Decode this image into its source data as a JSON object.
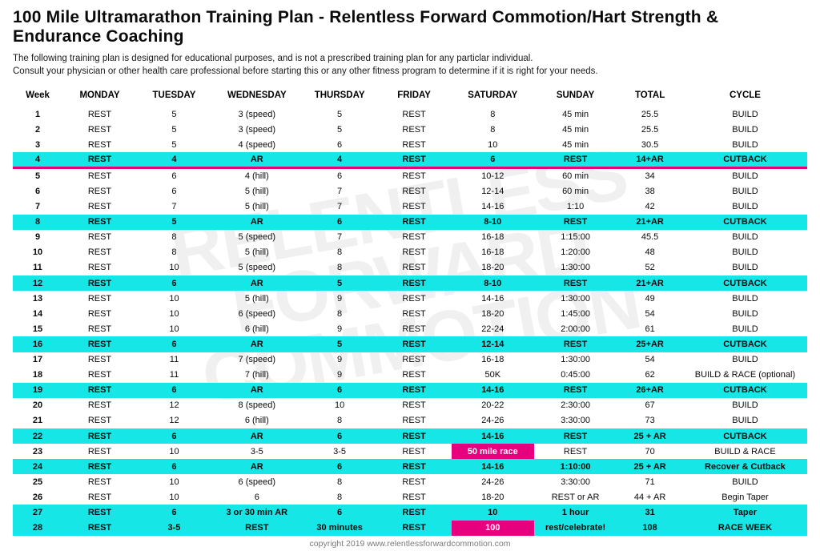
{
  "title": "100 Mile Ultramarathon Training Plan - Relentless Forward Commotion/Hart Strength & Endurance Coaching",
  "subtitle_line1": "The following training plan is designed for educational purposes, and is not a prescribed training plan for any particlar individual.",
  "subtitle_line2": "Consult your physician or other health care professional before starting this or any other fitness program to determine if it is right for your needs.",
  "footer": "copyright 2019 www.relentlessforwardcommotion.com",
  "colors": {
    "cutback_bg": "#17e6e6",
    "race_bg": "#e6007e",
    "pink_line": "#e6007e",
    "text": "#0a0a0a",
    "footer_text": "#7a7a7a",
    "background": "#ffffff"
  },
  "columns": [
    "Week",
    "MONDAY",
    "TUESDAY",
    "WEDNESDAY",
    "THURSDAY",
    "FRIDAY",
    "SATURDAY",
    "SUNDAY",
    "TOTAL",
    "CYCLE"
  ],
  "rows": [
    {
      "cells": [
        "1",
        "REST",
        "5",
        "3 (speed)",
        "5",
        "REST",
        "8",
        "45 min",
        "25.5",
        "BUILD"
      ],
      "style": "",
      "pinkUnder": false,
      "race": []
    },
    {
      "cells": [
        "2",
        "REST",
        "5",
        "3 (speed)",
        "5",
        "REST",
        "8",
        "45 min",
        "25.5",
        "BUILD"
      ],
      "style": "",
      "pinkUnder": false,
      "race": []
    },
    {
      "cells": [
        "3",
        "REST",
        "5",
        "4 (speed)",
        "6",
        "REST",
        "10",
        "45 min",
        "30.5",
        "BUILD"
      ],
      "style": "",
      "pinkUnder": false,
      "race": []
    },
    {
      "cells": [
        "4",
        "REST",
        "4",
        "AR",
        "4",
        "REST",
        "6",
        "REST",
        "14+AR",
        "CUTBACK"
      ],
      "style": "cutback",
      "pinkUnder": true,
      "race": []
    },
    {
      "cells": [
        "5",
        "REST",
        "6",
        "4 (hill)",
        "6",
        "REST",
        "10-12",
        "60 min",
        "34",
        "BUILD"
      ],
      "style": "",
      "pinkUnder": false,
      "race": []
    },
    {
      "cells": [
        "6",
        "REST",
        "6",
        "5 (hill)",
        "7",
        "REST",
        "12-14",
        "60 min",
        "38",
        "BUILD"
      ],
      "style": "",
      "pinkUnder": false,
      "race": []
    },
    {
      "cells": [
        "7",
        "REST",
        "7",
        "5 (hill)",
        "7",
        "REST",
        "14-16",
        "1:10",
        "42",
        "BUILD"
      ],
      "style": "",
      "pinkUnder": false,
      "race": []
    },
    {
      "cells": [
        "8",
        "REST",
        "5",
        "AR",
        "6",
        "REST",
        "8-10",
        "REST",
        "21+AR",
        "CUTBACK"
      ],
      "style": "cutback",
      "pinkUnder": false,
      "race": []
    },
    {
      "cells": [
        "9",
        "REST",
        "8",
        "5 (speed)",
        "7",
        "REST",
        "16-18",
        "1:15:00",
        "45.5",
        "BUILD"
      ],
      "style": "",
      "pinkUnder": false,
      "race": []
    },
    {
      "cells": [
        "10",
        "REST",
        "8",
        "5 (hill)",
        "8",
        "REST",
        "16-18",
        "1:20:00",
        "48",
        "BUILD"
      ],
      "style": "",
      "pinkUnder": false,
      "race": []
    },
    {
      "cells": [
        "11",
        "REST",
        "10",
        "5 (speed)",
        "8",
        "REST",
        "18-20",
        "1:30:00",
        "52",
        "BUILD"
      ],
      "style": "",
      "pinkUnder": false,
      "race": []
    },
    {
      "cells": [
        "12",
        "REST",
        "6",
        "AR",
        "5",
        "REST",
        "8-10",
        "REST",
        "21+AR",
        "CUTBACK"
      ],
      "style": "cutback",
      "pinkUnder": false,
      "race": []
    },
    {
      "cells": [
        "13",
        "REST",
        "10",
        "5 (hill)",
        "9",
        "REST",
        "14-16",
        "1:30:00",
        "49",
        "BUILD"
      ],
      "style": "",
      "pinkUnder": false,
      "race": []
    },
    {
      "cells": [
        "14",
        "REST",
        "10",
        "6 (speed)",
        "8",
        "REST",
        "18-20",
        "1:45:00",
        "54",
        "BUILD"
      ],
      "style": "",
      "pinkUnder": false,
      "race": []
    },
    {
      "cells": [
        "15",
        "REST",
        "10",
        "6 (hill)",
        "9",
        "REST",
        "22-24",
        "2:00:00",
        "61",
        "BUILD"
      ],
      "style": "",
      "pinkUnder": false,
      "race": []
    },
    {
      "cells": [
        "16",
        "REST",
        "6",
        "AR",
        "5",
        "REST",
        "12-14",
        "REST",
        "25+AR",
        "CUTBACK"
      ],
      "style": "cutback",
      "pinkUnder": false,
      "race": []
    },
    {
      "cells": [
        "17",
        "REST",
        "11",
        "7 (speed)",
        "9",
        "REST",
        "16-18",
        "1:30:00",
        "54",
        "BUILD"
      ],
      "style": "",
      "pinkUnder": false,
      "race": []
    },
    {
      "cells": [
        "18",
        "REST",
        "11",
        "7 (hill)",
        "9",
        "REST",
        "50K",
        "0:45:00",
        "62",
        "BUILD & RACE (optional)"
      ],
      "style": "",
      "pinkUnder": false,
      "race": []
    },
    {
      "cells": [
        "19",
        "REST",
        "6",
        "AR",
        "6",
        "REST",
        "14-16",
        "REST",
        "26+AR",
        "CUTBACK"
      ],
      "style": "cutback",
      "pinkUnder": false,
      "race": []
    },
    {
      "cells": [
        "20",
        "REST",
        "12",
        "8 (speed)",
        "10",
        "REST",
        "20-22",
        "2:30:00",
        "67",
        "BUILD"
      ],
      "style": "",
      "pinkUnder": false,
      "race": []
    },
    {
      "cells": [
        "21",
        "REST",
        "12",
        "6 (hill)",
        "8",
        "REST",
        "24-26",
        "3:30:00",
        "73",
        "BUILD"
      ],
      "style": "",
      "pinkUnder": false,
      "race": []
    },
    {
      "cells": [
        "22",
        "REST",
        "6",
        "AR",
        "6",
        "REST",
        "14-16",
        "REST",
        "25 + AR",
        "CUTBACK"
      ],
      "style": "cutback",
      "pinkUnder": false,
      "race": []
    },
    {
      "cells": [
        "23",
        "REST",
        "10",
        "3-5",
        "3-5",
        "REST",
        "50 mile race",
        "REST",
        "70",
        "BUILD & RACE"
      ],
      "style": "",
      "pinkUnder": false,
      "race": [
        6
      ]
    },
    {
      "cells": [
        "24",
        "REST",
        "6",
        "AR",
        "6",
        "REST",
        "14-16",
        "1:10:00",
        "25 + AR",
        "Recover & Cutback"
      ],
      "style": "cutback",
      "pinkUnder": false,
      "race": []
    },
    {
      "cells": [
        "25",
        "REST",
        "10",
        "6 (speed)",
        "8",
        "REST",
        "24-26",
        "3:30:00",
        "71",
        "BUILD"
      ],
      "style": "",
      "pinkUnder": false,
      "race": []
    },
    {
      "cells": [
        "26",
        "REST",
        "10",
        "6",
        "8",
        "REST",
        "18-20",
        "REST or AR",
        "44 + AR",
        "Begin Taper"
      ],
      "style": "",
      "pinkUnder": false,
      "race": []
    },
    {
      "cells": [
        "27",
        "REST",
        "6",
        "3 or 30 min AR",
        "6",
        "REST",
        "10",
        "1 hour",
        "31",
        "Taper"
      ],
      "style": "cutback",
      "pinkUnder": false,
      "race": []
    },
    {
      "cells": [
        "28",
        "REST",
        "3-5",
        "REST",
        "30 minutes",
        "REST",
        "100",
        "rest/celebrate!",
        "108",
        "RACE WEEK"
      ],
      "style": "cutback",
      "pinkUnder": false,
      "race": [
        6
      ]
    }
  ]
}
